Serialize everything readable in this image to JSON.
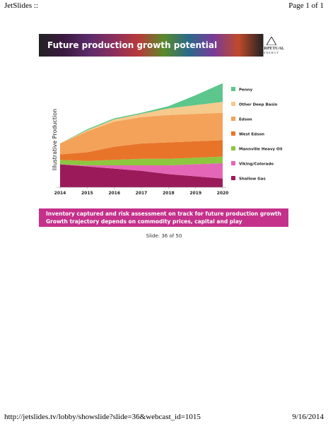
{
  "header": {
    "left": "JetSlides ::",
    "right": "Page 1 of 1"
  },
  "slide": {
    "title": "Future production growth potential",
    "logo": {
      "name": "PERPETUAL",
      "sub": "ENERGY"
    },
    "bullets": [
      "Inventory captured and risk assessment on track for future production growth",
      "Growth trajectory depends on commodity prices, capital and play performance"
    ],
    "counter": "Slide: 36 of 50"
  },
  "footer": {
    "url": "http://jetslides.tv/lobby/showslide?slide=36&webcast_id=1015",
    "date": "9/16/2014"
  },
  "chart_data": {
    "type": "stacked_area",
    "y_label": "Illustrative Production",
    "x": [
      2014,
      2015,
      2016,
      2017,
      2018,
      2019,
      2020
    ],
    "xlim": [
      2014,
      2020
    ],
    "xticks": [
      2014,
      2015,
      2016,
      2017,
      2018,
      2019,
      2020
    ],
    "ylim": [
      0,
      100
    ],
    "series": [
      {
        "name": "Shallow Gas",
        "color": "#9b1b5a",
        "values": [
          21,
          19,
          17,
          15,
          12,
          10,
          8
        ]
      },
      {
        "name": "Viking/Colorado",
        "color": "#e466b6",
        "values": [
          0,
          1,
          3,
          5,
          8,
          11,
          14
        ]
      },
      {
        "name": "Mannville Heavy Oil",
        "color": "#8dc63f",
        "values": [
          4,
          4,
          5,
          6,
          6,
          6,
          6
        ]
      },
      {
        "name": "West Edson",
        "color": "#e8742a",
        "values": [
          5,
          8,
          12,
          14,
          15,
          15,
          15
        ]
      },
      {
        "name": "Edson",
        "color": "#f4a25a",
        "values": [
          10,
          19,
          23,
          24,
          25,
          25,
          25
        ]
      },
      {
        "name": "Other Deep Basin",
        "color": "#f6c98c",
        "values": [
          0,
          1,
          2,
          3,
          6,
          8,
          10
        ]
      },
      {
        "name": "Penny",
        "color": "#5cc68c",
        "values": [
          0,
          1,
          1,
          1,
          2,
          9,
          17
        ]
      }
    ]
  }
}
